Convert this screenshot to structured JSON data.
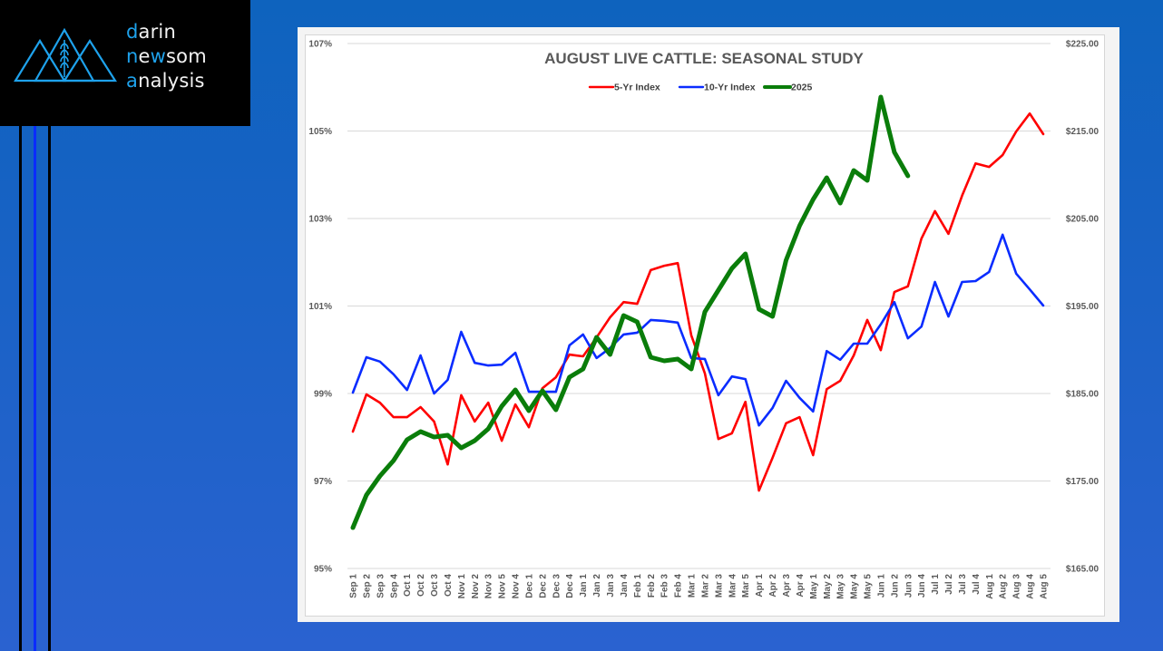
{
  "logo": {
    "lines": [
      {
        "accent": "d",
        "rest": "arin"
      },
      {
        "accent": "n",
        "mid": "e",
        "accent2": "w",
        "rest": "som"
      },
      {
        "accent": "a",
        "rest": "nalysis"
      }
    ],
    "icon": "mountains-wheat-icon",
    "brand_accent_color": "#1ea2ec"
  },
  "chart_data": {
    "type": "line",
    "title": "AUGUST LIVE CATTLE: SEASONAL STUDY",
    "xlabel": "",
    "ylabel_left": "",
    "ylabel_right": "",
    "legend_position": "top-center",
    "grid": true,
    "y_left": {
      "min": 95,
      "max": 107,
      "step": 2,
      "tick_labels": [
        "95%",
        "97%",
        "99%",
        "101%",
        "103%",
        "105%",
        "107%"
      ]
    },
    "y_right": {
      "min": 165,
      "max": 225,
      "step": 10,
      "tick_labels": [
        "$165.00",
        "$175.00",
        "$185.00",
        "$195.00",
        "$205.00",
        "$215.00",
        "$225.00"
      ]
    },
    "categories": [
      "Sep 1",
      "Sep 2",
      "Sep 3",
      "Sep 4",
      "Oct 1",
      "Oct 2",
      "Oct 3",
      "Oct 4",
      "Nov 1",
      "Nov 2",
      "Nov 3",
      "Nov 5",
      "Nov 4",
      "Dec 1",
      "Dec 2",
      "Dec 3",
      "Dec 4",
      "Jan 1",
      "Jan 2",
      "Jan 3",
      "Jan 4",
      "Feb 1",
      "Feb 2",
      "Feb 3",
      "Feb 4",
      "Mar 1",
      "Mar 2",
      "Mar 3",
      "Mar 4",
      "Mar 5",
      "Apr 1",
      "Apr 2",
      "Apr 3",
      "Apr 4",
      "May 1",
      "May 2",
      "May 3",
      "May 4",
      "May 5",
      "Jun 1",
      "Jun 2",
      "Jun 3",
      "Jun 4",
      "Jul 1",
      "Jul 2",
      "Jul 3",
      "Jul 4",
      "Aug 1",
      "Aug 2",
      "Aug 3",
      "Aug 4",
      "Aug 5"
    ],
    "series": [
      {
        "name": "5-Yr Index",
        "axis": "left",
        "color": "#ff0000",
        "values": [
          98.13,
          98.98,
          98.79,
          98.46,
          98.46,
          98.69,
          98.36,
          97.38,
          98.96,
          98.36,
          98.79,
          97.92,
          98.75,
          98.23,
          99.12,
          99.37,
          99.89,
          99.85,
          100.28,
          100.74,
          101.09,
          101.05,
          101.82,
          101.92,
          101.98,
          100.33,
          99.46,
          97.96,
          98.09,
          98.81,
          96.78,
          97.53,
          98.32,
          98.46,
          97.59,
          99.1,
          99.29,
          99.87,
          100.68,
          99.99,
          101.32,
          101.45,
          102.54,
          103.17,
          102.65,
          103.52,
          104.26,
          104.18,
          104.45,
          104.99,
          105.4,
          104.93
        ]
      },
      {
        "name": "10-Yr Index",
        "axis": "left",
        "color": "#0a2cff",
        "values": [
          99.02,
          99.83,
          99.73,
          99.44,
          99.08,
          99.87,
          99.0,
          99.31,
          100.41,
          99.7,
          99.64,
          99.66,
          99.93,
          99.04,
          99.04,
          99.04,
          100.1,
          100.35,
          99.81,
          100.04,
          100.35,
          100.39,
          100.68,
          100.66,
          100.62,
          99.81,
          99.79,
          98.96,
          99.39,
          99.33,
          98.27,
          98.67,
          99.29,
          98.9,
          98.59,
          99.97,
          99.77,
          100.14,
          100.14,
          100.58,
          101.09,
          100.26,
          100.53,
          101.55,
          100.76,
          101.55,
          101.57,
          101.78,
          102.63,
          101.74,
          101.38,
          101.01
        ]
      },
      {
        "name": "2025",
        "axis": "right",
        "color": "#0a7d0a",
        "values": [
          169.66,
          173.39,
          175.57,
          177.33,
          179.72,
          180.65,
          180.03,
          180.23,
          178.78,
          179.61,
          180.96,
          183.55,
          185.41,
          183.03,
          185.31,
          183.13,
          186.87,
          187.8,
          191.42,
          189.46,
          193.91,
          193.19,
          189.15,
          188.73,
          188.94,
          187.8,
          194.33,
          196.81,
          199.3,
          200.96,
          194.64,
          193.81,
          200.23,
          204.17,
          207.18,
          209.66,
          206.76,
          210.49,
          209.35,
          218.89,
          212.57,
          209.87
        ]
      }
    ]
  }
}
